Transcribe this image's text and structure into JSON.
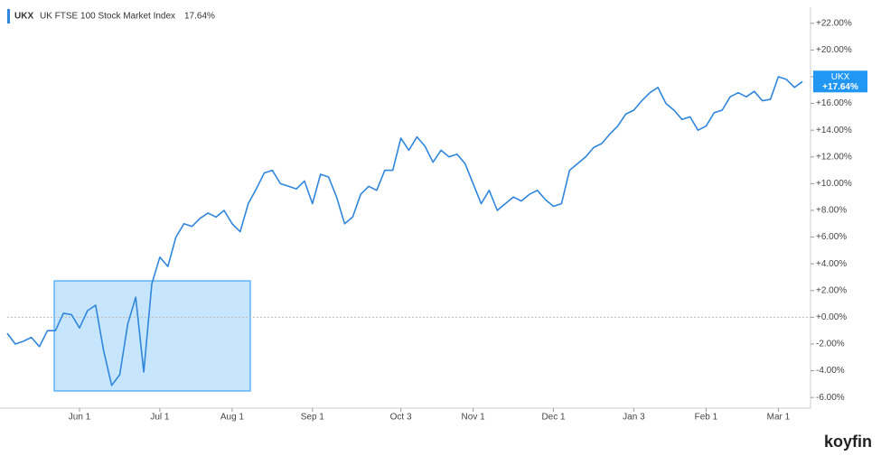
{
  "chart_data": {
    "type": "line",
    "categories": [
      null,
      null,
      null,
      null,
      null,
      null,
      null,
      null,
      null,
      "Jun 1",
      null,
      null,
      null,
      null,
      null,
      null,
      null,
      null,
      null,
      "Jul 1",
      null,
      null,
      null,
      null,
      null,
      null,
      null,
      null,
      "Aug 1",
      null,
      null,
      null,
      null,
      null,
      null,
      null,
      null,
      null,
      "Sep 1",
      null,
      null,
      null,
      null,
      null,
      null,
      null,
      null,
      null,
      null,
      "Oct 3",
      null,
      null,
      null,
      null,
      null,
      null,
      null,
      null,
      "Nov 1",
      null,
      null,
      null,
      null,
      null,
      null,
      null,
      null,
      null,
      "Dec 1",
      null,
      null,
      null,
      null,
      null,
      null,
      null,
      null,
      null,
      "Jan 3",
      null,
      null,
      null,
      null,
      null,
      null,
      null,
      null,
      "Feb 1",
      null,
      null,
      null,
      null,
      null,
      null,
      null,
      null,
      "Mar 1",
      null,
      null,
      null
    ],
    "series": [
      {
        "ticker": "UKX",
        "name": "UK FTSE 100 Stock Market Index",
        "legend_value": "17.64%",
        "last_value_label": "+17.64%",
        "color": "#2f86dc",
        "values": [
          -1.2,
          -2.0,
          -1.8,
          -1.5,
          -2.2,
          -1.0,
          -1.0,
          0.3,
          0.2,
          -0.8,
          0.5,
          0.9,
          -2.5,
          -5.1,
          -4.3,
          -0.5,
          1.5,
          -4.1,
          2.5,
          4.5,
          3.8,
          6.0,
          7.0,
          6.8,
          7.4,
          7.8,
          7.5,
          8.0,
          7.0,
          6.4,
          8.5,
          9.6,
          10.8,
          11.0,
          10.0,
          9.8,
          9.6,
          10.2,
          8.5,
          10.7,
          10.5,
          9.0,
          7.0,
          7.5,
          9.2,
          9.8,
          9.5,
          11.0,
          11.0,
          13.4,
          12.5,
          13.5,
          12.8,
          11.6,
          12.5,
          12.0,
          12.2,
          11.5,
          10.0,
          8.5,
          9.5,
          8.0,
          8.5,
          9.0,
          8.7,
          9.2,
          9.5,
          8.8,
          8.3,
          8.5,
          11.0,
          11.5,
          12.0,
          12.7,
          13.0,
          13.7,
          14.3,
          15.2,
          15.5,
          16.2,
          16.8,
          17.2,
          16.0,
          15.5,
          14.8,
          15.0,
          14.0,
          14.3,
          15.3,
          15.5,
          16.5,
          16.8,
          16.5,
          16.9,
          16.2,
          16.3,
          18.0,
          17.8,
          17.2,
          17.64
        ]
      }
    ],
    "ylim": [
      -6.8,
      23.2
    ],
    "yticks": [
      {
        "value": 22,
        "label": "+22.00%"
      },
      {
        "value": 20,
        "label": "+20.00%"
      },
      {
        "value": 18,
        "label": "+18.00%"
      },
      {
        "value": 16,
        "label": "+16.00%"
      },
      {
        "value": 14,
        "label": "+14.00%"
      },
      {
        "value": 12,
        "label": "+12.00%"
      },
      {
        "value": 10,
        "label": "+10.00%"
      },
      {
        "value": 8,
        "label": "+8.00%"
      },
      {
        "value": 6,
        "label": "+6.00%"
      },
      {
        "value": 4,
        "label": "+4.00%"
      },
      {
        "value": 2,
        "label": "+2.00%"
      },
      {
        "value": 0,
        "label": "+0.00%"
      },
      {
        "value": -2,
        "label": "-2.00%"
      },
      {
        "value": -4,
        "label": "-4.00%"
      },
      {
        "value": -6,
        "label": "-6.00%"
      }
    ],
    "zero_line": true,
    "watermark": "koyfin"
  }
}
